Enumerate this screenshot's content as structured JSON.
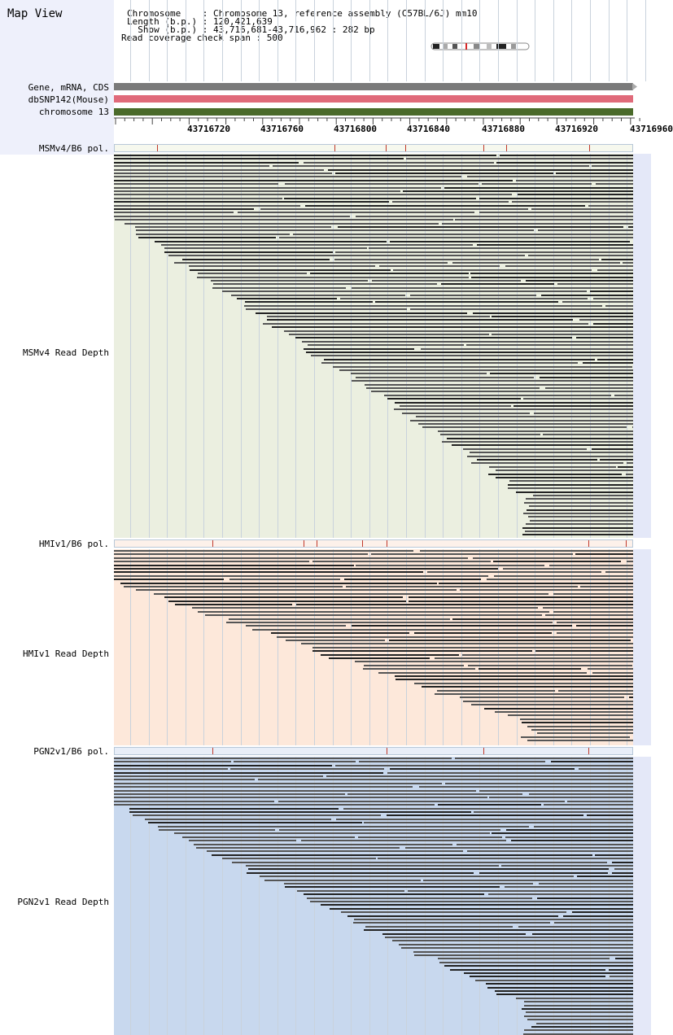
{
  "app": {
    "title": "Map View"
  },
  "info": {
    "chromosome_label": "Chromosome    ",
    "chromosome_value": ": Chromosome 13, reference assembly (C57BL/6J) mm10",
    "length_label": "Length (b.p.) ",
    "length_value": ": 120,421,639",
    "show_label": "  Show (b.p.) ",
    "show_value": ": 43,716,681-43,716,962 : 282 bp",
    "coverage_text": "Read coverage check span : 500"
  },
  "tracks": {
    "gene": {
      "label": "Gene, mRNA, CDS",
      "color": "#7a7a7a"
    },
    "snp": {
      "label": "dbSNP142(Mouse)",
      "color": "#e06a7a"
    },
    "chrom": {
      "label": "chromosome 13",
      "color": "#4a6a2a"
    }
  },
  "ruler": {
    "ticks": [
      "43716720",
      "43716760",
      "43716800",
      "43716840",
      "43716880",
      "43716920",
      "43716960"
    ]
  },
  "panels": [
    {
      "pol_label": "MSMv4/B6 pol.",
      "depth_label": "MSMv4 Read Depth",
      "bg": "#ebefe0",
      "pol_bg": "#f6f8ee"
    },
    {
      "pol_label": "HMIv1/B6 pol.",
      "depth_label": "HMIv1 Read Depth",
      "bg": "#fde8da",
      "pol_bg": "#fdf1ea"
    },
    {
      "pol_label": "PGN2v1/B6 pol.",
      "depth_label": "PGN2v1 Read Depth",
      "bg": "#c8d8ee",
      "pol_bg": "#e8eef8"
    }
  ],
  "colors": {
    "read": "#555555",
    "read_dark": "#222222",
    "polymorphism": "#c0392b"
  }
}
